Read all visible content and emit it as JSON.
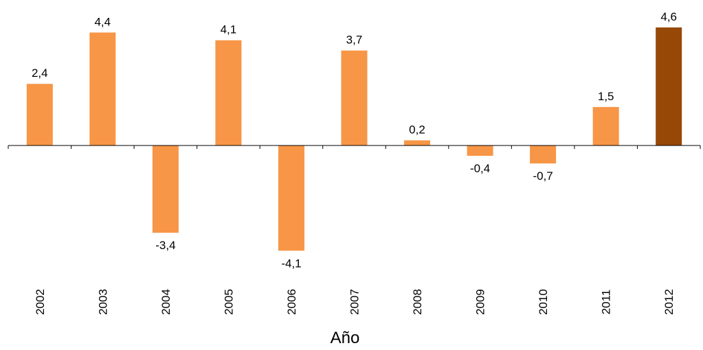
{
  "chart_data": {
    "type": "bar",
    "title": "",
    "xlabel": "Año",
    "ylabel": "",
    "categories": [
      "2002",
      "2003",
      "2004",
      "2005",
      "2006",
      "2007",
      "2008",
      "2009",
      "2010",
      "2011",
      "2012"
    ],
    "values": [
      2.4,
      4.4,
      -3.4,
      4.1,
      -4.1,
      3.7,
      0.2,
      -0.4,
      -0.7,
      1.5,
      4.6
    ],
    "data_labels": [
      "2,4",
      "4,4",
      "-3,4",
      "4,1",
      "-4,1",
      "3,7",
      "0,2",
      "-0,4",
      "-0,7",
      "1,5",
      "4,6"
    ],
    "highlight_category": "2012",
    "ylim": [
      -5,
      5
    ],
    "grid": false,
    "legend": "none",
    "colors": {
      "bar": "#F79646",
      "highlight": "#974806",
      "axis": "#000000"
    }
  }
}
